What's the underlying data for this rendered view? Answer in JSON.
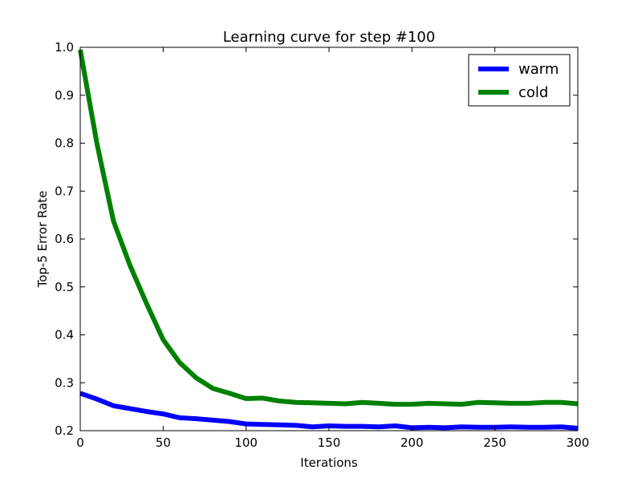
{
  "chart_data": {
    "type": "line",
    "title": "Learning curve for step #100",
    "xlabel": "Iterations",
    "ylabel": "Top-5 Error Rate",
    "xlim": [
      0,
      300
    ],
    "ylim": [
      0.2,
      1.0
    ],
    "xticks": [
      0,
      50,
      100,
      150,
      200,
      250,
      300
    ],
    "yticks": [
      0.2,
      0.3,
      0.4,
      0.5,
      0.6,
      0.7,
      0.8,
      0.9,
      1.0
    ],
    "xtick_labels": [
      "0",
      "50",
      "100",
      "150",
      "200",
      "250",
      "300"
    ],
    "ytick_labels": [
      "0.2",
      "0.3",
      "0.4",
      "0.5",
      "0.6",
      "0.7",
      "0.8",
      "0.9",
      "1.0"
    ],
    "grid": false,
    "legend_position": "top-right",
    "x": [
      0,
      10,
      20,
      30,
      40,
      50,
      60,
      70,
      80,
      90,
      100,
      110,
      120,
      130,
      140,
      150,
      160,
      170,
      180,
      190,
      200,
      210,
      220,
      230,
      240,
      250,
      260,
      270,
      280,
      290,
      300
    ],
    "series": [
      {
        "name": "warm",
        "color": "#0000ff",
        "values": [
          0.278,
          0.266,
          0.252,
          0.246,
          0.24,
          0.235,
          0.227,
          0.225,
          0.222,
          0.219,
          0.214,
          0.213,
          0.212,
          0.211,
          0.208,
          0.21,
          0.209,
          0.209,
          0.208,
          0.21,
          0.206,
          0.207,
          0.206,
          0.208,
          0.207,
          0.207,
          0.208,
          0.207,
          0.207,
          0.208,
          0.205
        ]
      },
      {
        "name": "cold",
        "color": "#008000",
        "values": [
          0.995,
          0.8,
          0.638,
          0.545,
          0.465,
          0.39,
          0.342,
          0.31,
          0.288,
          0.278,
          0.267,
          0.268,
          0.262,
          0.259,
          0.258,
          0.257,
          0.256,
          0.259,
          0.257,
          0.255,
          0.255,
          0.257,
          0.256,
          0.255,
          0.259,
          0.258,
          0.257,
          0.257,
          0.259,
          0.259,
          0.256
        ]
      }
    ]
  }
}
